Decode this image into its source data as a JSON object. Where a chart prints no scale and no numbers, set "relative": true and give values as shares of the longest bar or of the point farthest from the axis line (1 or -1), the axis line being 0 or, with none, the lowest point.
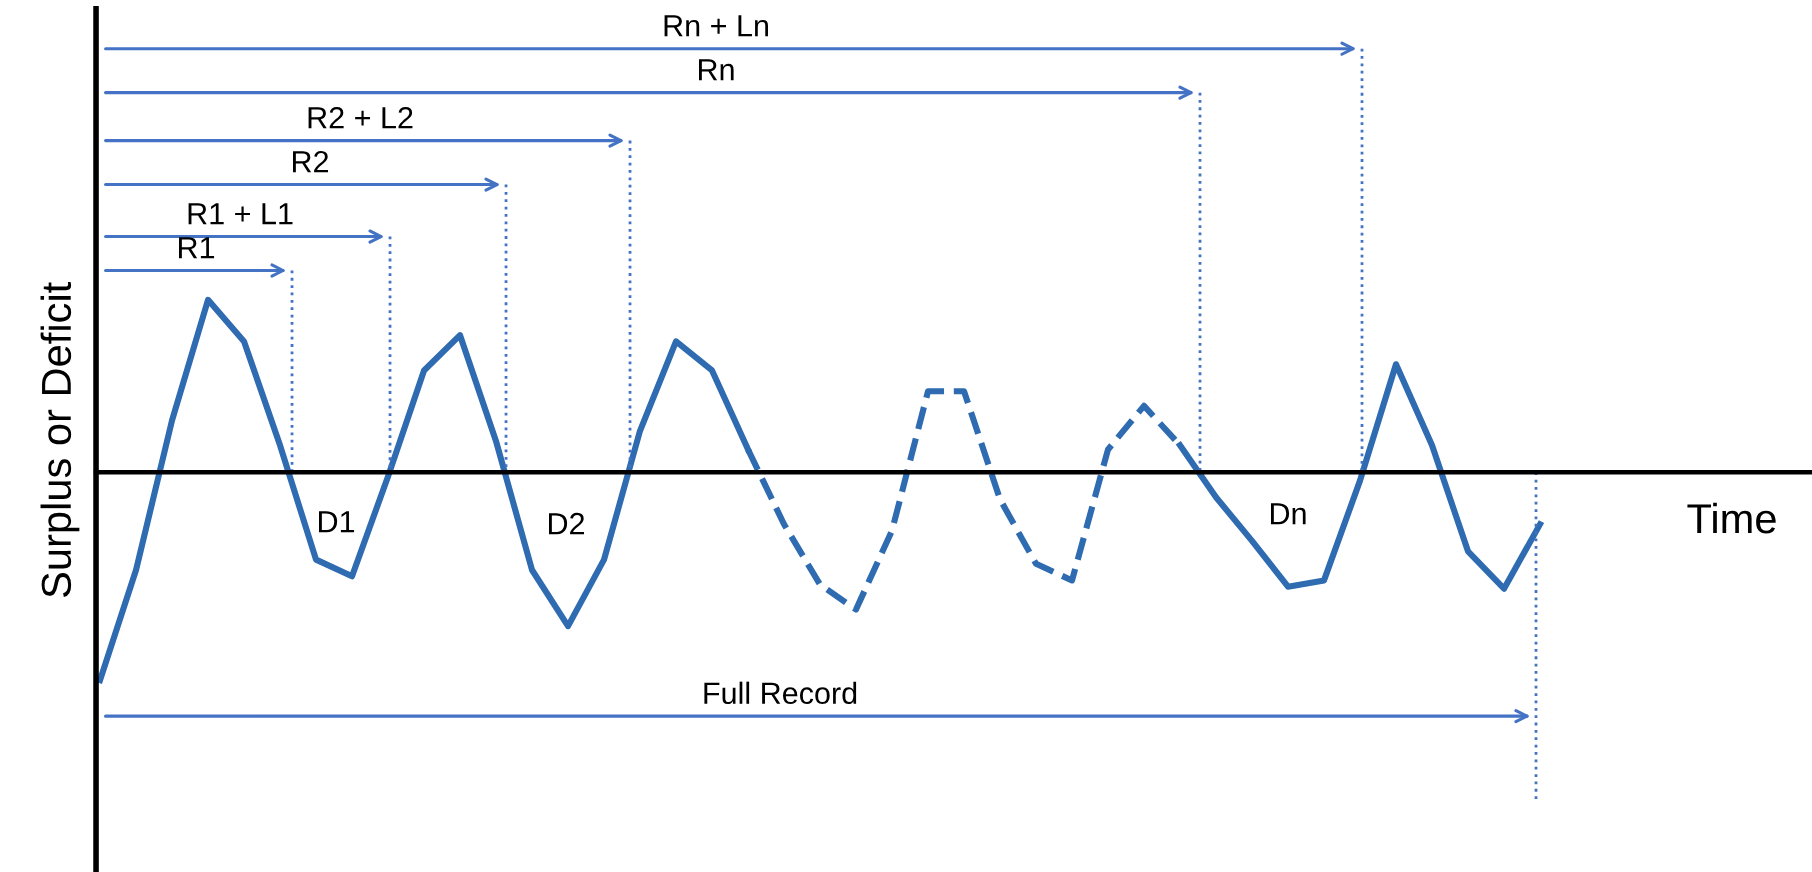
{
  "chart_data": {
    "type": "line",
    "relative": true,
    "ylabel": "Surplus or Deficit",
    "xlabel": "Time",
    "categories": [
      null,
      null,
      null,
      null,
      null,
      null,
      null,
      null,
      null,
      null,
      null,
      null,
      null,
      null,
      null,
      null,
      null,
      null,
      null,
      null,
      null,
      null,
      null,
      null,
      null,
      null,
      null,
      null,
      null,
      null,
      null,
      null,
      null,
      null,
      null,
      null,
      null,
      null,
      null,
      null,
      null
    ],
    "series": [
      {
        "color": "#2e6bb0",
        "line_style": "solid",
        "values": [
          -1.0,
          -0.47,
          0.25,
          0.83,
          0.63,
          0.13,
          -0.42,
          -0.5,
          -0.02,
          0.49,
          0.66,
          0.15,
          -0.47,
          -0.74,
          -0.42,
          0.2,
          0.63,
          0.49,
          0.11,
          null,
          null,
          null,
          null,
          null,
          null,
          null,
          null,
          null,
          null,
          null,
          null,
          null,
          null,
          null,
          null,
          null,
          null,
          null,
          null,
          null,
          null
        ]
      },
      {
        "color": "#2e6bb0",
        "line_style": "dashed",
        "values": [
          null,
          null,
          null,
          null,
          null,
          null,
          null,
          null,
          null,
          null,
          null,
          null,
          null,
          null,
          null,
          null,
          null,
          null,
          0.11,
          -0.25,
          -0.54,
          -0.66,
          -0.28,
          0.39,
          0.39,
          -0.13,
          -0.44,
          -0.52,
          0.11,
          0.32,
          0.13,
          null,
          null,
          null,
          null,
          null,
          null,
          null,
          null,
          null,
          null
        ]
      },
      {
        "color": "#2e6bb0",
        "line_style": "solid",
        "values": [
          null,
          null,
          null,
          null,
          null,
          null,
          null,
          null,
          null,
          null,
          null,
          null,
          null,
          null,
          null,
          null,
          null,
          null,
          null,
          null,
          null,
          null,
          null,
          null,
          null,
          null,
          null,
          null,
          null,
          null,
          0.13,
          -0.12,
          -0.33,
          -0.55,
          -0.52,
          -0.04,
          0.52,
          0.13,
          -0.38,
          -0.56,
          -0.25
        ]
      }
    ],
    "annotations": [
      "Rn + Ln",
      "Rn",
      "R2 + L2",
      "R2",
      "R1 + L1",
      "R1",
      "D1",
      "D2",
      "Dn",
      "Full Record"
    ]
  }
}
